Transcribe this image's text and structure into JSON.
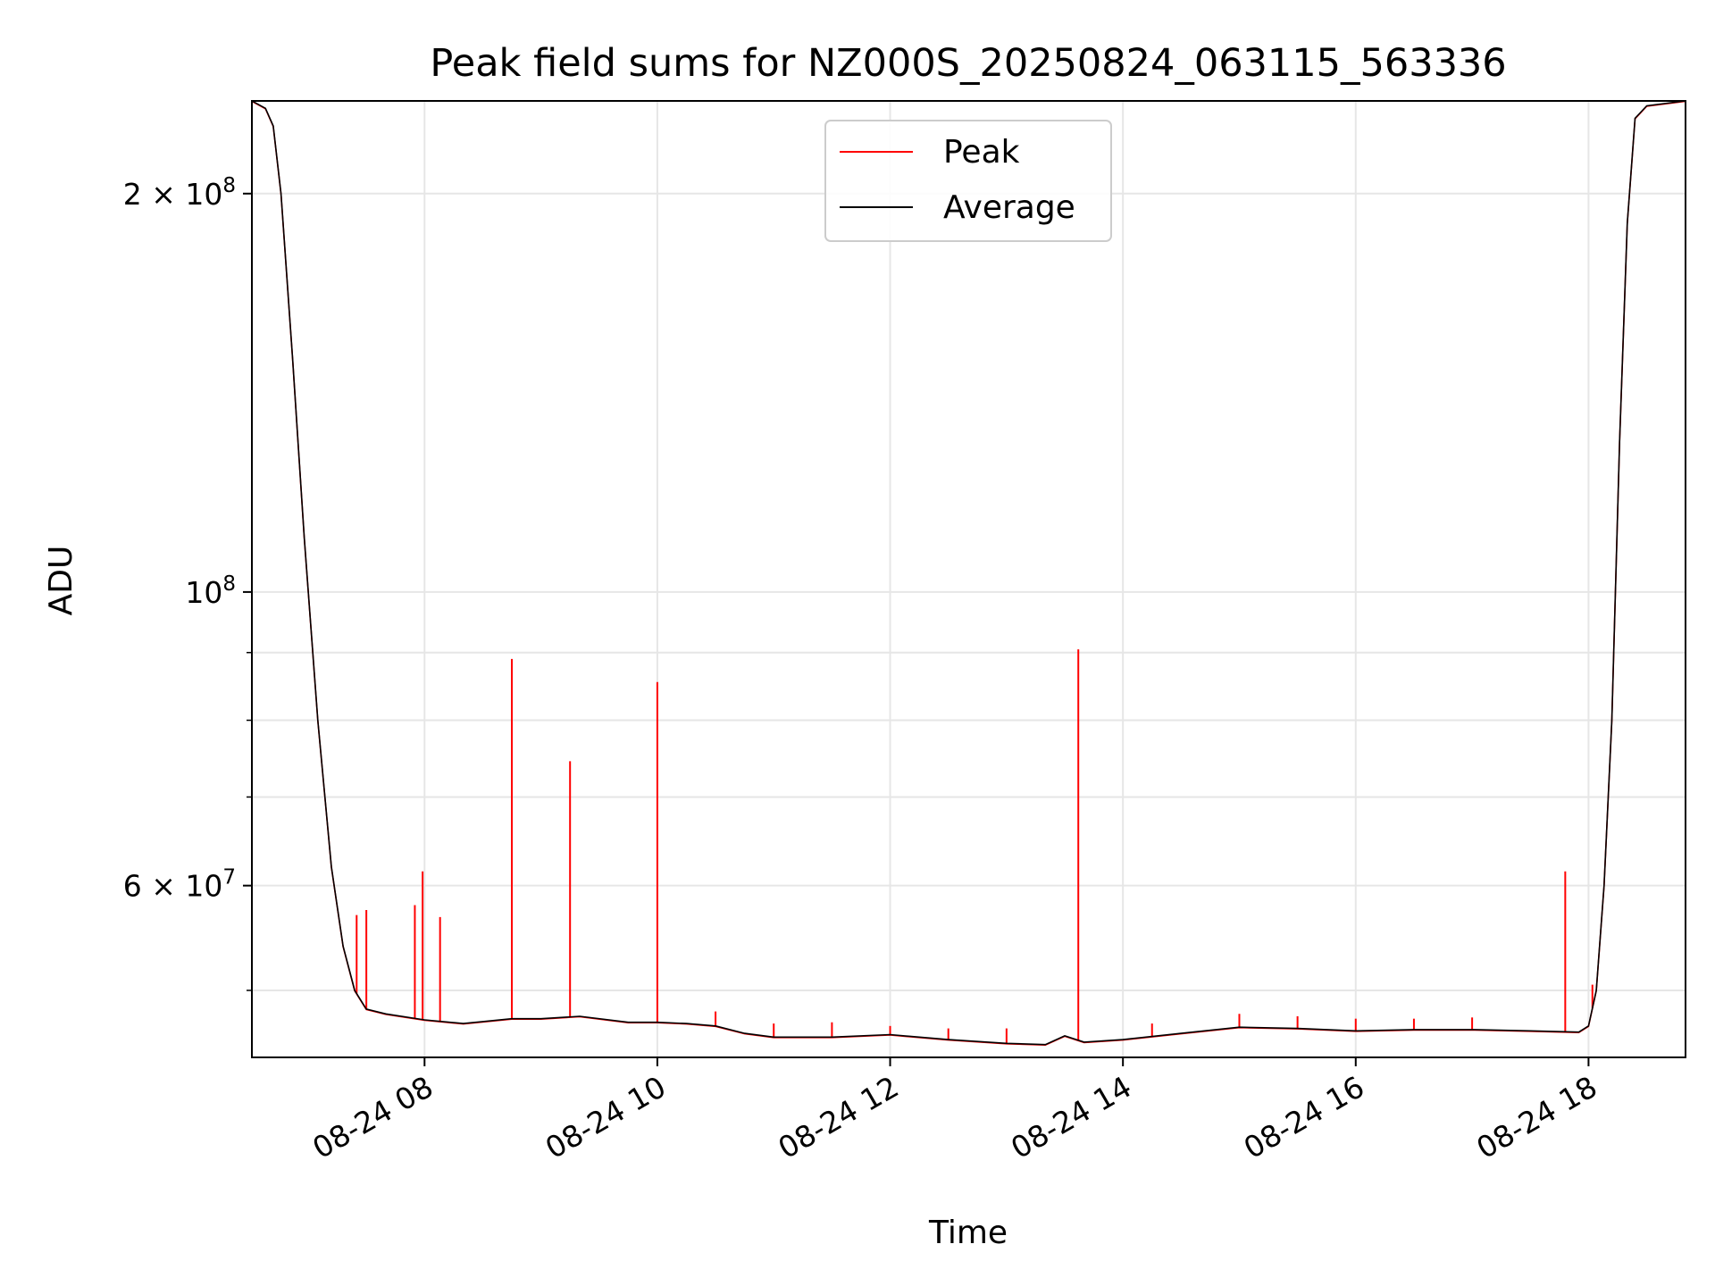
{
  "chart_data": {
    "type": "line",
    "title": "Peak field sums for NZ000S_20250824_063115_563336",
    "xlabel": "Time",
    "ylabel": "ADU",
    "x_range": [
      "2025-08-24 06:31",
      "2025-08-24 18:50"
    ],
    "y_scale": "log",
    "ylim": [
      44500000,
      235000000
    ],
    "grid": true,
    "legend_position": "upper center",
    "x_ticks": [
      {
        "value": "2025-08-24 08:00",
        "label": "08-24 08"
      },
      {
        "value": "2025-08-24 10:00",
        "label": "08-24 10"
      },
      {
        "value": "2025-08-24 12:00",
        "label": "08-24 12"
      },
      {
        "value": "2025-08-24 14:00",
        "label": "08-24 14"
      },
      {
        "value": "2025-08-24 16:00",
        "label": "08-24 16"
      },
      {
        "value": "2025-08-24 18:00",
        "label": "08-24 18"
      }
    ],
    "y_ticks": [
      {
        "value": 200000000,
        "base": "2 × 10",
        "exp": "8"
      },
      {
        "value": 100000000,
        "base": "10",
        "exp": "8"
      },
      {
        "value": 60000000,
        "base": "6 × 10",
        "exp": "7"
      }
    ],
    "y_minor_ticks": [
      50000000,
      70000000,
      80000000,
      90000000
    ],
    "series": [
      {
        "name": "Average",
        "color": "#000000",
        "points": [
          [
            "2025-08-24 06:31",
            235000000
          ],
          [
            "2025-08-24 06:38",
            232000000
          ],
          [
            "2025-08-24 06:42",
            225000000
          ],
          [
            "2025-08-24 06:46",
            200000000
          ],
          [
            "2025-08-24 06:52",
            150000000
          ],
          [
            "2025-08-24 06:58",
            110000000
          ],
          [
            "2025-08-24 07:05",
            80000000
          ],
          [
            "2025-08-24 07:12",
            62000000
          ],
          [
            "2025-08-24 07:18",
            54000000
          ],
          [
            "2025-08-24 07:24",
            50000000
          ],
          [
            "2025-08-24 07:30",
            48400000
          ],
          [
            "2025-08-24 07:40",
            48000000
          ],
          [
            "2025-08-24 08:00",
            47500000
          ],
          [
            "2025-08-24 08:20",
            47200000
          ],
          [
            "2025-08-24 08:45",
            47600000
          ],
          [
            "2025-08-24 09:00",
            47600000
          ],
          [
            "2025-08-24 09:20",
            47800000
          ],
          [
            "2025-08-24 09:45",
            47300000
          ],
          [
            "2025-08-24 10:00",
            47300000
          ],
          [
            "2025-08-24 10:15",
            47200000
          ],
          [
            "2025-08-24 10:30",
            47000000
          ],
          [
            "2025-08-24 10:45",
            46400000
          ],
          [
            "2025-08-24 11:00",
            46100000
          ],
          [
            "2025-08-24 11:30",
            46100000
          ],
          [
            "2025-08-24 12:00",
            46300000
          ],
          [
            "2025-08-24 12:30",
            45900000
          ],
          [
            "2025-08-24 13:00",
            45600000
          ],
          [
            "2025-08-24 13:20",
            45500000
          ],
          [
            "2025-08-24 13:30",
            46200000
          ],
          [
            "2025-08-24 13:40",
            45700000
          ],
          [
            "2025-08-24 14:00",
            45900000
          ],
          [
            "2025-08-24 14:30",
            46400000
          ],
          [
            "2025-08-24 15:00",
            46900000
          ],
          [
            "2025-08-24 15:30",
            46800000
          ],
          [
            "2025-08-24 16:00",
            46600000
          ],
          [
            "2025-08-24 16:30",
            46700000
          ],
          [
            "2025-08-24 17:00",
            46700000
          ],
          [
            "2025-08-24 17:30",
            46600000
          ],
          [
            "2025-08-24 17:55",
            46500000
          ],
          [
            "2025-08-24 18:00",
            47000000
          ],
          [
            "2025-08-24 18:04",
            50000000
          ],
          [
            "2025-08-24 18:08",
            60000000
          ],
          [
            "2025-08-24 18:12",
            80000000
          ],
          [
            "2025-08-24 18:16",
            130000000
          ],
          [
            "2025-08-24 18:20",
            190000000
          ],
          [
            "2025-08-24 18:24",
            228000000
          ],
          [
            "2025-08-24 18:30",
            233000000
          ],
          [
            "2025-08-24 18:50",
            235000000
          ]
        ]
      },
      {
        "name": "Peak",
        "color": "#ff0000",
        "spikes": [
          [
            "2025-08-24 07:25",
            57000000
          ],
          [
            "2025-08-24 07:30",
            57500000
          ],
          [
            "2025-08-24 07:55",
            58000000
          ],
          [
            "2025-08-24 07:59",
            61500000
          ],
          [
            "2025-08-24 08:08",
            56800000
          ],
          [
            "2025-08-24 08:45",
            89000000
          ],
          [
            "2025-08-24 09:15",
            74500000
          ],
          [
            "2025-08-24 10:00",
            85500000
          ],
          [
            "2025-08-24 10:30",
            48200000
          ],
          [
            "2025-08-24 11:00",
            47200000
          ],
          [
            "2025-08-24 11:30",
            47300000
          ],
          [
            "2025-08-24 12:00",
            47000000
          ],
          [
            "2025-08-24 12:30",
            46800000
          ],
          [
            "2025-08-24 13:00",
            46800000
          ],
          [
            "2025-08-24 13:37",
            90500000
          ],
          [
            "2025-08-24 14:15",
            47200000
          ],
          [
            "2025-08-24 15:00",
            48000000
          ],
          [
            "2025-08-24 15:30",
            47800000
          ],
          [
            "2025-08-24 16:00",
            47600000
          ],
          [
            "2025-08-24 16:30",
            47600000
          ],
          [
            "2025-08-24 17:00",
            47700000
          ],
          [
            "2025-08-24 17:48",
            61500000
          ],
          [
            "2025-08-24 18:02",
            50500000
          ]
        ]
      }
    ]
  }
}
